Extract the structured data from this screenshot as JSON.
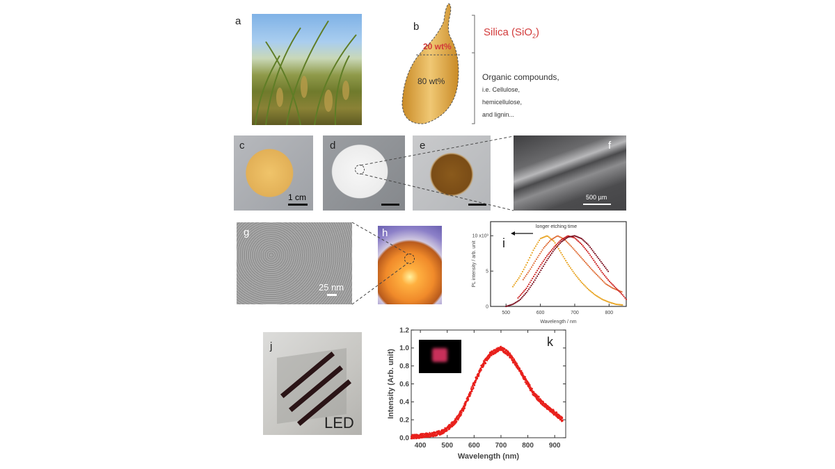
{
  "panels": {
    "a": {
      "label": "a"
    },
    "b": {
      "label": "b",
      "top_fraction": "20 wt%",
      "bottom_fraction": "80 wt%",
      "silica_label": "Silica (SiO",
      "silica_sub": "2",
      "silica_close": ")",
      "organic_lines": [
        "Organic compounds,",
        "i.e. Cellulose,",
        "hemicellulose,",
        "and lignin..."
      ],
      "silica_color": "#d23a3a"
    },
    "c": {
      "label": "c",
      "scale": "1 cm"
    },
    "d": {
      "label": "d"
    },
    "e": {
      "label": "e"
    },
    "f": {
      "label": "f",
      "scale": "500 µm"
    },
    "g": {
      "label": "g",
      "scale": "25 nm"
    },
    "h": {
      "label": "h"
    },
    "i": {
      "label": "i"
    },
    "j": {
      "label": "j",
      "text": "LED"
    },
    "k": {
      "label": "k"
    }
  },
  "chart_data": [
    {
      "panel": "i",
      "type": "scatter",
      "xlabel": "Wavelength / nm",
      "ylabel": "PL intensity / arb. unit",
      "annotation": "longer etching time",
      "xlim": [
        455,
        850
      ],
      "ylim": [
        0,
        12
      ],
      "x_ticks": [
        500,
        600,
        700,
        800
      ],
      "x_tick_labels": [
        "500",
        "600",
        "700",
        "800"
      ],
      "y_ticks": [
        0,
        5,
        10
      ],
      "y_tick_labels": [
        "0",
        "5",
        "10 x10³"
      ],
      "grid": false,
      "series": [
        {
          "color": "#e8a423",
          "x": [
            520,
            540,
            560,
            580,
            600,
            620,
            640,
            660,
            680,
            700,
            720,
            740,
            760,
            780,
            800,
            820,
            840
          ],
          "y": [
            2.8,
            4.2,
            6.0,
            8.0,
            9.6,
            10,
            9.2,
            7.6,
            6.0,
            4.6,
            3.4,
            2.4,
            1.6,
            1.0,
            0.6,
            0.3,
            0.2
          ]
        },
        {
          "color": "#e0703a",
          "x": [
            550,
            570,
            590,
            610,
            630,
            650,
            670,
            690,
            710,
            730,
            750,
            770,
            790,
            810,
            830,
            840
          ],
          "y": [
            3.8,
            5.2,
            6.8,
            8.3,
            9.4,
            10,
            9.5,
            8.5,
            7.4,
            6.3,
            5.2,
            4.2,
            3.2,
            2.6,
            2.2,
            2.0
          ]
        },
        {
          "color": "#cc2222",
          "x": [
            535,
            560,
            580,
            600,
            620,
            640,
            660,
            680,
            700,
            720,
            740,
            760,
            780,
            800,
            820,
            840,
            850
          ],
          "y": [
            1.2,
            2.6,
            4.2,
            5.8,
            7.2,
            8.4,
            9.4,
            10,
            9.7,
            8.8,
            7.6,
            6.2,
            4.8,
            3.6,
            2.6,
            1.6,
            1.0
          ]
        },
        {
          "color": "#7a1020",
          "x": [
            500,
            520,
            540,
            560,
            580,
            600,
            620,
            640,
            660,
            680,
            700,
            720,
            740,
            760,
            780,
            800
          ],
          "y": [
            0,
            0.3,
            0.9,
            2.0,
            3.4,
            5.0,
            6.6,
            8.0,
            9.1,
            9.8,
            10,
            9.6,
            8.7,
            7.4,
            6.1,
            4.8
          ]
        }
      ]
    },
    {
      "panel": "k",
      "type": "scatter",
      "xlabel": "Wavelength (nm)",
      "ylabel": "Intensity (Arb. unit)",
      "xlim": [
        366,
        941
      ],
      "ylim": [
        0,
        1.2
      ],
      "x_ticks": [
        400,
        500,
        600,
        700,
        800,
        900
      ],
      "x_tick_labels": [
        "400",
        "500",
        "600",
        "700",
        "800",
        "900"
      ],
      "y_ticks": [
        0,
        0.2,
        0.4,
        0.6,
        0.8,
        1.0,
        1.2
      ],
      "y_tick_labels": [
        "0.0",
        "0.2",
        "0.4",
        "0.6",
        "0.8",
        "1.0",
        "1.2"
      ],
      "grid": false,
      "series": [
        {
          "color": "#e8201c",
          "x": [
            366,
            400,
            450,
            480,
            500,
            530,
            560,
            600,
            630,
            660,
            700,
            730,
            760,
            790,
            820,
            850,
            880,
            910,
            930
          ],
          "y": [
            0.01,
            0.02,
            0.04,
            0.06,
            0.1,
            0.18,
            0.32,
            0.6,
            0.8,
            0.93,
            1.0,
            0.93,
            0.8,
            0.65,
            0.5,
            0.4,
            0.32,
            0.25,
            0.2
          ]
        }
      ]
    }
  ]
}
